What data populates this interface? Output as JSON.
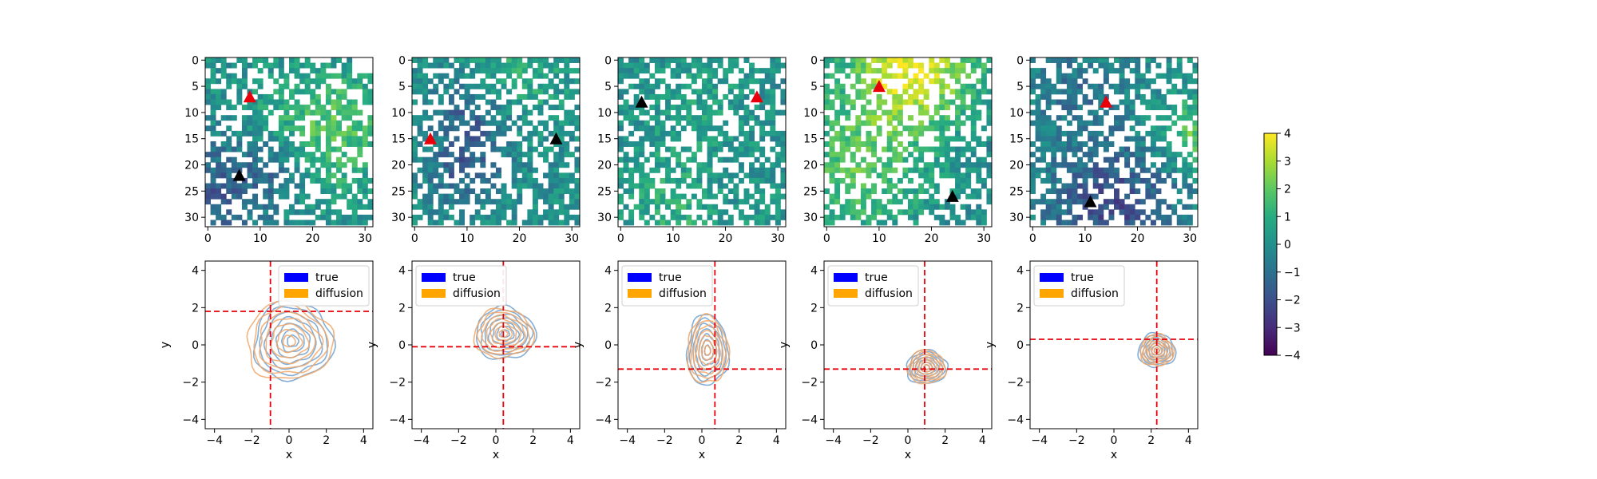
{
  "figure": {
    "colorbar": {
      "ticks": [
        "4",
        "3",
        "2",
        "1",
        "0",
        "−1",
        "−2",
        "−3",
        "−4"
      ],
      "vmin": -4,
      "vmax": 4,
      "colormap": "viridis"
    },
    "legend_entries": [
      {
        "label": "true",
        "color": "#0000ff"
      },
      {
        "label": "diffusion",
        "color": "#ffa500"
      }
    ],
    "colors": {
      "true_contours": "#6fa0cf",
      "diffusion_contours": "#f0a76a",
      "crosshair": "#e8000b",
      "start_marker": "#e8000b",
      "end_marker": "#000000"
    }
  },
  "chart_data": [
    {
      "type": "heatmap",
      "panel": 1,
      "grid_size": 32,
      "colormap": "viridis",
      "xticks": [
        "0",
        "10",
        "20",
        "30"
      ],
      "yticks": [
        "0",
        "5",
        "10",
        "15",
        "20",
        "25",
        "30"
      ],
      "markers": [
        {
          "kind": "red-triangle",
          "x": 8,
          "y": 7
        },
        {
          "kind": "black-triangle",
          "x": 6,
          "y": 22
        }
      ]
    },
    {
      "type": "heatmap",
      "panel": 2,
      "grid_size": 32,
      "colormap": "viridis",
      "xticks": [
        "0",
        "10",
        "20",
        "30"
      ],
      "yticks": [
        "0",
        "5",
        "10",
        "15",
        "20",
        "25",
        "30"
      ],
      "markers": [
        {
          "kind": "red-triangle",
          "x": 3,
          "y": 15
        },
        {
          "kind": "black-triangle",
          "x": 27,
          "y": 15
        }
      ]
    },
    {
      "type": "heatmap",
      "panel": 3,
      "grid_size": 32,
      "colormap": "viridis",
      "xticks": [
        "0",
        "10",
        "20",
        "30"
      ],
      "yticks": [
        "0",
        "5",
        "10",
        "15",
        "20",
        "25",
        "30"
      ],
      "markers": [
        {
          "kind": "red-triangle",
          "x": 26,
          "y": 7
        },
        {
          "kind": "black-triangle",
          "x": 4,
          "y": 8
        }
      ]
    },
    {
      "type": "heatmap",
      "panel": 4,
      "grid_size": 32,
      "colormap": "viridis",
      "xticks": [
        "0",
        "10",
        "20",
        "30"
      ],
      "yticks": [
        "0",
        "5",
        "10",
        "15",
        "20",
        "25",
        "30"
      ],
      "markers": [
        {
          "kind": "red-triangle",
          "x": 10,
          "y": 5
        },
        {
          "kind": "black-triangle",
          "x": 24,
          "y": 26
        }
      ]
    },
    {
      "type": "heatmap",
      "panel": 5,
      "grid_size": 32,
      "colormap": "viridis",
      "xticks": [
        "0",
        "10",
        "20",
        "30"
      ],
      "yticks": [
        "0",
        "5",
        "10",
        "15",
        "20",
        "25",
        "30"
      ],
      "markers": [
        {
          "kind": "red-triangle",
          "x": 14,
          "y": 8
        },
        {
          "kind": "black-triangle",
          "x": 11,
          "y": 27
        }
      ]
    },
    {
      "type": "contour",
      "panel": 6,
      "xlabel": "x",
      "ylabel": "y",
      "xlim": [
        -4.5,
        4.5
      ],
      "ylim": [
        -4.5,
        4.5
      ],
      "xticks": [
        "−4",
        "−2",
        "0",
        "2",
        "4"
      ],
      "yticks": [
        "4",
        "2",
        "0",
        "−2",
        "−4"
      ],
      "crosshair": {
        "x": -1.0,
        "y": 1.8
      },
      "series": [
        {
          "name": "true",
          "center": [
            0.2,
            0.2
          ],
          "radius": [
            2.1,
            2.1
          ]
        },
        {
          "name": "diffusion",
          "center": [
            0.0,
            0.2
          ],
          "radius": [
            2.3,
            2.1
          ]
        }
      ]
    },
    {
      "type": "contour",
      "panel": 7,
      "xlabel": "x",
      "ylabel": "y",
      "xlim": [
        -4.5,
        4.5
      ],
      "ylim": [
        -4.5,
        4.5
      ],
      "xticks": [
        "−4",
        "−2",
        "0",
        "2",
        "4"
      ],
      "yticks": [
        "4",
        "2",
        "0",
        "−2",
        "−4"
      ],
      "crosshair": {
        "x": 0.4,
        "y": -0.1
      },
      "series": [
        {
          "name": "true",
          "center": [
            0.5,
            0.6
          ],
          "radius": [
            1.6,
            1.4
          ]
        },
        {
          "name": "diffusion",
          "center": [
            0.4,
            0.6
          ],
          "radius": [
            1.6,
            1.3
          ]
        }
      ]
    },
    {
      "type": "contour",
      "panel": 8,
      "xlabel": "x",
      "ylabel": "y",
      "xlim": [
        -4.5,
        4.5
      ],
      "ylim": [
        -4.5,
        4.5
      ],
      "xticks": [
        "−4",
        "−2",
        "0",
        "2",
        "4"
      ],
      "yticks": [
        "4",
        "2",
        "0",
        "−2",
        "−4"
      ],
      "crosshair": {
        "x": 0.7,
        "y": -1.3
      },
      "series": [
        {
          "name": "true",
          "center": [
            0.3,
            -0.3
          ],
          "radius": [
            1.1,
            1.9
          ]
        },
        {
          "name": "diffusion",
          "center": [
            0.3,
            -0.3
          ],
          "radius": [
            1.1,
            1.8
          ]
        }
      ]
    },
    {
      "type": "contour",
      "panel": 9,
      "xlabel": "x",
      "ylabel": "y",
      "xlim": [
        -4.5,
        4.5
      ],
      "ylim": [
        -4.5,
        4.5
      ],
      "xticks": [
        "−4",
        "−2",
        "0",
        "2",
        "4"
      ],
      "yticks": [
        "4",
        "2",
        "0",
        "−2",
        "−4"
      ],
      "crosshair": {
        "x": 0.9,
        "y": -1.3
      },
      "series": [
        {
          "name": "true",
          "center": [
            1.0,
            -1.2
          ],
          "radius": [
            1.1,
            0.9
          ]
        },
        {
          "name": "diffusion",
          "center": [
            1.0,
            -1.2
          ],
          "radius": [
            1.0,
            0.9
          ]
        }
      ]
    },
    {
      "type": "contour",
      "panel": 10,
      "xlabel": "x",
      "ylabel": "y",
      "xlim": [
        -4.5,
        4.5
      ],
      "ylim": [
        -4.5,
        4.5
      ],
      "xticks": [
        "−4",
        "−2",
        "0",
        "2",
        "4"
      ],
      "yticks": [
        "4",
        "2",
        "0",
        "−2",
        "−4"
      ],
      "crosshair": {
        "x": 2.3,
        "y": 0.3
      },
      "series": [
        {
          "name": "true",
          "center": [
            2.3,
            -0.3
          ],
          "radius": [
            1.0,
            0.9
          ]
        },
        {
          "name": "diffusion",
          "center": [
            2.3,
            -0.3
          ],
          "radius": [
            0.9,
            0.85
          ]
        }
      ]
    }
  ]
}
